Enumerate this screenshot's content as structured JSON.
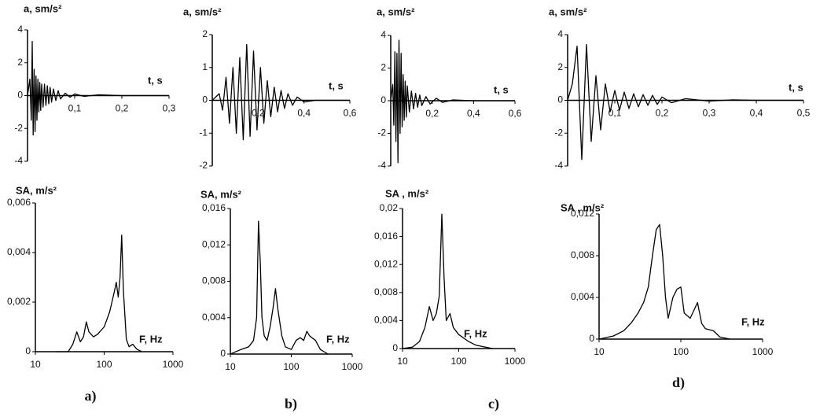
{
  "chart_data": [
    {
      "type": "line",
      "y_label": "a, sm/s²",
      "x_label": "t, s",
      "color": "#000000",
      "xlim": [
        0,
        0.3
      ],
      "ylim": [
        -4,
        4
      ],
      "xticks": [
        {
          "value": 0.1,
          "label": "0,1"
        },
        {
          "value": 0.2,
          "label": "0,2"
        },
        {
          "value": 0.3,
          "label": "0,3"
        }
      ],
      "yticks": [
        -4,
        -2,
        0,
        2,
        4
      ],
      "x": [
        0,
        0.005,
        0.008,
        0.01,
        0.012,
        0.014,
        0.016,
        0.018,
        0.02,
        0.022,
        0.024,
        0.026,
        0.028,
        0.03,
        0.033,
        0.036,
        0.039,
        0.042,
        0.045,
        0.048,
        0.051,
        0.055,
        0.06,
        0.065,
        0.07,
        0.08,
        0.09,
        0.1,
        0.12,
        0.15,
        0.2,
        0.25,
        0.3
      ],
      "series": [
        {
          "values": [
            0,
            1.0,
            -1.5,
            3.3,
            -2.4,
            1.6,
            -2.2,
            1.2,
            -1.5,
            1.0,
            -1.0,
            0.8,
            -0.9,
            0.7,
            -0.7,
            0.7,
            -0.6,
            0.6,
            -0.5,
            0.5,
            -0.4,
            0.4,
            -0.3,
            0.3,
            -0.2,
            0.15,
            -0.1,
            0.1,
            -0.05,
            0.05,
            0,
            0,
            0
          ]
        }
      ]
    },
    {
      "type": "line",
      "y_label": "a, sm/s²",
      "x_label": "t, s",
      "color": "#000000",
      "xlim": [
        0,
        0.6
      ],
      "ylim": [
        -2,
        2
      ],
      "xticks": [
        {
          "value": 0.2,
          "label": "0,2"
        },
        {
          "value": 0.4,
          "label": "0,4"
        },
        {
          "value": 0.6,
          "label": "0,6"
        }
      ],
      "yticks": [
        -2,
        -1,
        0,
        1,
        2
      ],
      "x": [
        0,
        0.03,
        0.045,
        0.06,
        0.075,
        0.09,
        0.105,
        0.12,
        0.135,
        0.15,
        0.165,
        0.18,
        0.195,
        0.21,
        0.225,
        0.24,
        0.255,
        0.27,
        0.285,
        0.3,
        0.315,
        0.33,
        0.35,
        0.37,
        0.4,
        0.45,
        0.6
      ],
      "series": [
        {
          "values": [
            0,
            0.2,
            -0.3,
            0.7,
            -0.7,
            1.0,
            -1.0,
            1.3,
            -1.2,
            1.7,
            -1.1,
            1.5,
            -0.9,
            1.0,
            -0.7,
            0.6,
            -0.5,
            0.4,
            -0.35,
            0.3,
            -0.25,
            0.2,
            -0.15,
            0.1,
            -0.05,
            0,
            0
          ]
        }
      ]
    },
    {
      "type": "line",
      "y_label": "a, sm/s²",
      "x_label": "t, s",
      "color": "#000000",
      "xlim": [
        0,
        0.6
      ],
      "ylim": [
        -4,
        4
      ],
      "xticks": [
        {
          "value": 0.2,
          "label": "0,2"
        },
        {
          "value": 0.4,
          "label": "0,4"
        },
        {
          "value": 0.6,
          "label": "0,6"
        }
      ],
      "yticks": [
        -4,
        -2,
        0,
        2,
        4
      ],
      "x": [
        0,
        0.01,
        0.015,
        0.02,
        0.025,
        0.03,
        0.035,
        0.04,
        0.045,
        0.05,
        0.055,
        0.06,
        0.065,
        0.07,
        0.075,
        0.08,
        0.09,
        0.1,
        0.11,
        0.12,
        0.13,
        0.14,
        0.15,
        0.17,
        0.19,
        0.22,
        0.25,
        0.3,
        0.4,
        0.6
      ],
      "series": [
        {
          "values": [
            0,
            1.0,
            -1.5,
            3.0,
            -2.5,
            2.9,
            -3.8,
            3.7,
            -2.0,
            2.9,
            -1.6,
            1.6,
            -1.2,
            1.2,
            -1.0,
            0.9,
            -0.7,
            0.6,
            -0.5,
            0.45,
            -0.4,
            0.35,
            -0.3,
            0.25,
            -0.2,
            0.15,
            -0.1,
            0.05,
            0,
            0
          ]
        }
      ]
    },
    {
      "type": "line",
      "y_label": "a, sm/s²",
      "x_label": "t, s",
      "color": "#000000",
      "xlim": [
        0,
        0.5
      ],
      "ylim": [
        -4,
        4
      ],
      "xticks": [
        {
          "value": 0.1,
          "label": "0,1"
        },
        {
          "value": 0.2,
          "label": "0,2"
        },
        {
          "value": 0.3,
          "label": "0,3"
        },
        {
          "value": 0.4,
          "label": "0,4"
        },
        {
          "value": 0.5,
          "label": "0,5"
        }
      ],
      "yticks": [
        -4,
        -2,
        0,
        2,
        4
      ],
      "x": [
        0,
        0.01,
        0.02,
        0.03,
        0.04,
        0.05,
        0.06,
        0.07,
        0.08,
        0.09,
        0.1,
        0.11,
        0.12,
        0.13,
        0.14,
        0.15,
        0.16,
        0.17,
        0.18,
        0.19,
        0.2,
        0.22,
        0.25,
        0.3,
        0.35,
        0.4,
        0.5
      ],
      "series": [
        {
          "values": [
            0,
            1.0,
            3.3,
            -3.6,
            3.4,
            -2.5,
            1.5,
            -1.8,
            1.0,
            -0.7,
            0.6,
            -0.6,
            0.5,
            -0.5,
            0.4,
            -0.4,
            0.35,
            -0.3,
            0.3,
            -0.25,
            0.2,
            -0.15,
            0.1,
            -0.05,
            0.03,
            0,
            0
          ]
        }
      ]
    },
    {
      "type": "line",
      "y_label": "SA, m/s²",
      "x_label": "F, Hz",
      "color": "#000000",
      "xscale": "log",
      "xlim": [
        10,
        1000
      ],
      "ylim": [
        0,
        0.006
      ],
      "xticks": [
        10,
        100,
        1000
      ],
      "yticks": [
        0,
        {
          "value": 0.002,
          "label": "0,002"
        },
        {
          "value": 0.004,
          "label": "0,004"
        },
        {
          "value": 0.006,
          "label": "0,006"
        }
      ],
      "x": [
        20,
        30,
        35,
        40,
        45,
        50,
        55,
        60,
        70,
        80,
        100,
        120,
        140,
        150,
        160,
        170,
        180,
        190,
        200,
        210,
        230,
        260,
        300,
        350
      ],
      "series": [
        {
          "values": [
            0,
            0,
            0.0003,
            0.0008,
            0.0004,
            0.0006,
            0.0012,
            0.0008,
            0.0006,
            0.0007,
            0.001,
            0.0016,
            0.0024,
            0.0028,
            0.0022,
            0.003,
            0.0047,
            0.0025,
            0.0015,
            0.0005,
            0.0002,
            0.0003,
            0.0001,
            0
          ]
        }
      ]
    },
    {
      "type": "line",
      "y_label": "SA, m/s²",
      "x_label": "F, Hz",
      "color": "#000000",
      "xscale": "log",
      "xlim": [
        10,
        1000
      ],
      "ylim": [
        0,
        0.016
      ],
      "xticks": [
        10,
        100,
        1000
      ],
      "yticks": [
        0,
        {
          "value": 0.004,
          "label": "0,004"
        },
        {
          "value": 0.008,
          "label": "0,008"
        },
        {
          "value": 0.012,
          "label": "0,012"
        },
        {
          "value": 0.016,
          "label": "0,016"
        }
      ],
      "x": [
        10,
        15,
        20,
        24,
        27,
        29,
        31,
        33,
        36,
        40,
        45,
        50,
        55,
        60,
        70,
        80,
        100,
        120,
        140,
        160,
        180,
        200,
        250,
        300,
        400
      ],
      "series": [
        {
          "values": [
            0,
            0.0005,
            0.0008,
            0.0015,
            0.004,
            0.0146,
            0.01,
            0.004,
            0.002,
            0.0015,
            0.003,
            0.005,
            0.0072,
            0.005,
            0.002,
            0.0008,
            0.0005,
            0.0015,
            0.0018,
            0.0015,
            0.0025,
            0.002,
            0.0015,
            0.0005,
            0
          ]
        }
      ]
    },
    {
      "type": "line",
      "y_label": "SA , m/s²",
      "x_label": "F, Hz",
      "color": "#000000",
      "xscale": "log",
      "xlim": [
        10,
        1000
      ],
      "ylim": [
        0,
        0.02
      ],
      "xticks": [
        10,
        100,
        1000
      ],
      "yticks": [
        0,
        {
          "value": 0.004,
          "label": "0,004"
        },
        {
          "value": 0.008,
          "label": "0,008"
        },
        {
          "value": 0.012,
          "label": "0,012"
        },
        {
          "value": 0.016,
          "label": "0,016"
        },
        {
          "value": 0.02,
          "label": "0,02"
        }
      ],
      "x": [
        10,
        15,
        20,
        25,
        30,
        35,
        40,
        45,
        50,
        55,
        60,
        70,
        80,
        100,
        150,
        200,
        300,
        400
      ],
      "series": [
        {
          "values": [
            0,
            0.0002,
            0.001,
            0.003,
            0.006,
            0.004,
            0.005,
            0.0075,
            0.0192,
            0.01,
            0.004,
            0.005,
            0.003,
            0.002,
            0.001,
            0.0005,
            0.0002,
            0
          ]
        }
      ]
    },
    {
      "type": "line",
      "y_label": "SA , m/s²",
      "x_label": "F, Hz",
      "color": "#000000",
      "xscale": "log",
      "xlim": [
        10,
        1000
      ],
      "ylim": [
        0,
        0.012
      ],
      "xticks": [
        10,
        100,
        1000
      ],
      "yticks": [
        0,
        {
          "value": 0.004,
          "label": "0,004"
        },
        {
          "value": 0.008,
          "label": "0,008"
        },
        {
          "value": 0.012,
          "label": "0,012"
        }
      ],
      "x": [
        10,
        15,
        20,
        25,
        30,
        35,
        40,
        45,
        50,
        55,
        60,
        65,
        70,
        80,
        90,
        100,
        110,
        130,
        160,
        180,
        200,
        250,
        300,
        400
      ],
      "series": [
        {
          "values": [
            0,
            0.0003,
            0.0008,
            0.0016,
            0.0025,
            0.0035,
            0.005,
            0.008,
            0.0105,
            0.011,
            0.008,
            0.004,
            0.002,
            0.004,
            0.0048,
            0.005,
            0.0025,
            0.002,
            0.0035,
            0.0015,
            0.001,
            0.0008,
            0.0002,
            0
          ]
        }
      ]
    }
  ],
  "panel_labels": [
    "a)",
    "b)",
    "c)",
    "d)"
  ]
}
